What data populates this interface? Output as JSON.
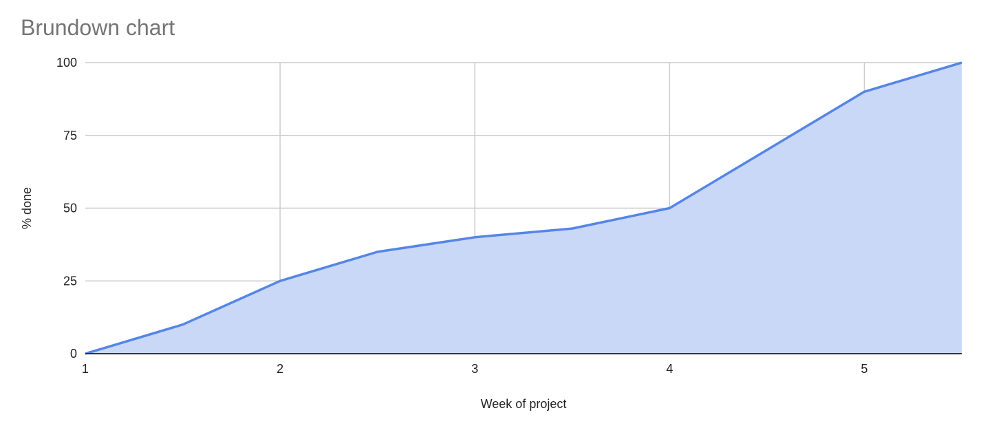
{
  "chart_data": {
    "type": "area",
    "title": "Brundown chart",
    "xlabel": "Week of project",
    "ylabel": "% done",
    "x": [
      1,
      1.5,
      2,
      2.5,
      3,
      3.5,
      4,
      4.5,
      5,
      5.5
    ],
    "series": [
      {
        "values": [
          0,
          10,
          25,
          35,
          40,
          43,
          50,
          70,
          90,
          100
        ]
      }
    ],
    "xlim": [
      1,
      5.5
    ],
    "ylim": [
      0,
      100
    ],
    "xticks": [
      1,
      2,
      3,
      4,
      5
    ],
    "yticks": [
      0,
      25,
      50,
      75,
      100
    ],
    "grid": true,
    "legend": "none",
    "colors": {
      "line": "#5585e6",
      "fill": "#c9d8f7",
      "grid": "#cccccc",
      "axis": "#333333",
      "title": "#757575",
      "text": "#222222"
    }
  }
}
